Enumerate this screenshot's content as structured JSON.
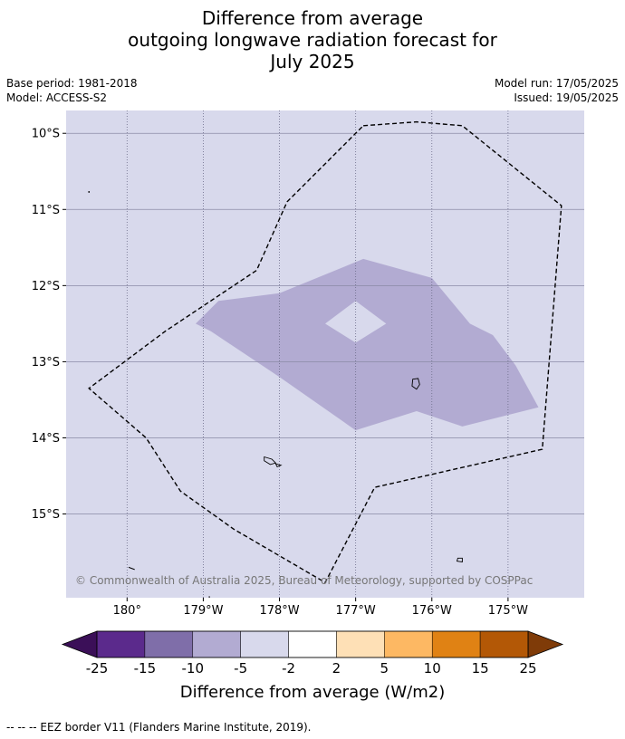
{
  "title": {
    "line1": "Difference from average",
    "line2": "outgoing longwave radiation forecast for",
    "line3": "July 2025"
  },
  "meta": {
    "base_period": "Base period: 1981-2018",
    "model": "Model: ACCESS-S2",
    "model_run": "Model run: 17/05/2025",
    "issued": "Issued: 19/05/2025"
  },
  "map": {
    "lon_range": [
      -180.8,
      -174.0
    ],
    "lat_range": [
      -16.1,
      -9.7
    ],
    "lon_ticks": [
      {
        "value": -180,
        "label": "180°"
      },
      {
        "value": -179,
        "label": "179°W"
      },
      {
        "value": -178,
        "label": "178°W"
      },
      {
        "value": -177,
        "label": "177°W"
      },
      {
        "value": -176,
        "label": "176°W"
      },
      {
        "value": -175,
        "label": "175°W"
      }
    ],
    "lat_ticks": [
      {
        "value": -10,
        "label": "10°S"
      },
      {
        "value": -11,
        "label": "11°S"
      },
      {
        "value": -12,
        "label": "12°S"
      },
      {
        "value": -13,
        "label": "13°S"
      },
      {
        "value": -14,
        "label": "14°S"
      },
      {
        "value": -15,
        "label": "15°S"
      }
    ],
    "background_category": "-5 to -2",
    "anomaly_region": {
      "category": "-10 to -5",
      "outline": [
        [
          -179.1,
          -12.5
        ],
        [
          -178.8,
          -12.2
        ],
        [
          -178.0,
          -12.1
        ],
        [
          -176.9,
          -11.65
        ],
        [
          -176.0,
          -11.9
        ],
        [
          -175.5,
          -12.5
        ],
        [
          -175.2,
          -12.65
        ],
        [
          -174.9,
          -13.05
        ],
        [
          -174.6,
          -13.6
        ],
        [
          -175.6,
          -13.85
        ],
        [
          -176.2,
          -13.65
        ],
        [
          -177.0,
          -13.9
        ],
        [
          -178.0,
          -13.2
        ],
        [
          -178.9,
          -12.6
        ]
      ],
      "hole": [
        [
          -177.4,
          -12.5
        ],
        [
          -177.0,
          -12.2
        ],
        [
          -176.6,
          -12.5
        ],
        [
          -177.0,
          -12.75
        ]
      ]
    },
    "eez_border": [
      [
        -176.9,
        -9.9
      ],
      [
        -176.2,
        -9.85
      ],
      [
        -175.6,
        -9.9
      ],
      [
        -174.3,
        -10.95
      ],
      [
        -174.55,
        -14.15
      ],
      [
        -176.75,
        -14.65
      ],
      [
        -177.4,
        -15.9
      ],
      [
        -178.6,
        -15.2
      ],
      [
        -179.3,
        -14.7
      ],
      [
        -179.75,
        -14.0
      ],
      [
        -180.5,
        -13.35
      ],
      [
        -179.5,
        -12.6
      ],
      [
        -178.3,
        -11.8
      ],
      [
        -177.9,
        -10.9
      ],
      [
        -176.9,
        -9.9
      ]
    ],
    "islands": [
      [
        [
          -176.25,
          -13.23
        ],
        [
          -176.18,
          -13.22
        ],
        [
          -176.16,
          -13.3
        ],
        [
          -176.2,
          -13.36
        ],
        [
          -176.26,
          -13.32
        ]
      ],
      [
        [
          -178.2,
          -14.25
        ],
        [
          -178.1,
          -14.28
        ],
        [
          -178.05,
          -14.33
        ],
        [
          -178.12,
          -14.35
        ],
        [
          -178.2,
          -14.3
        ]
      ],
      [
        [
          -178.05,
          -14.34
        ],
        [
          -177.98,
          -14.36
        ],
        [
          -178.03,
          -14.38
        ]
      ],
      [
        [
          -175.66,
          -15.58
        ],
        [
          -175.6,
          -15.58
        ],
        [
          -175.6,
          -15.63
        ],
        [
          -175.67,
          -15.62
        ]
      ]
    ],
    "island_points": [
      [
        -180.5,
        -10.77
      ]
    ],
    "island_strokes": [
      [
        [
          -179.98,
          -15.7
        ],
        [
          -179.9,
          -15.73
        ]
      ],
      [
        [
          -178.92,
          -16.08
        ],
        [
          -178.92,
          -16.1
        ]
      ]
    ],
    "copyright": "© Commonwealth of Australia 2025, Bureau of Meteorology, supported by COSPPac"
  },
  "colorbar": {
    "label": "Difference from average (W/m2)",
    "colors": [
      "#3b0f58",
      "#5b2a8c",
      "#7f6ea9",
      "#b2abd2",
      "#d8d9ec",
      "#ffffff",
      "#fee0b6",
      "#fdb863",
      "#e08214",
      "#b35806",
      "#7f3b08"
    ],
    "tick_labels": [
      "-25",
      "-15",
      "-10",
      "-5",
      "-2",
      "2",
      "5",
      "10",
      "15",
      "25"
    ]
  },
  "footer": "--  --  -- EEZ border V11 (Flanders Marine Institute, 2019)."
}
